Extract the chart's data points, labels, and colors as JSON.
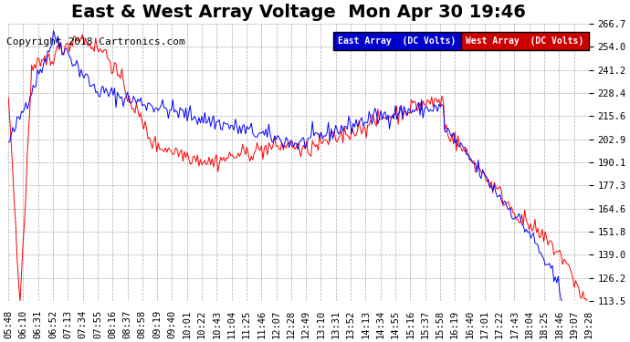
{
  "title": "East & West Array Voltage  Mon Apr 30 19:46",
  "copyright": "Copyright 2018 Cartronics.com",
  "legend_east": "East Array  (DC Volts)",
  "legend_west": "West Array  (DC Volts)",
  "east_color": "#0000ff",
  "west_color": "#ff0000",
  "legend_east_bg": "#0000cc",
  "legend_west_bg": "#cc0000",
  "background_color": "#ffffff",
  "plot_bg_color": "#ffffff",
  "grid_color": "#aaaaaa",
  "ylim": [
    113.5,
    266.7
  ],
  "yticks": [
    113.5,
    126.2,
    139.0,
    151.8,
    164.6,
    177.3,
    190.1,
    202.9,
    215.6,
    228.4,
    241.2,
    254.0,
    266.7
  ],
  "xtick_labels": [
    "05:48",
    "06:10",
    "06:31",
    "06:52",
    "07:13",
    "07:34",
    "07:55",
    "08:16",
    "08:37",
    "08:58",
    "09:19",
    "09:40",
    "10:01",
    "10:22",
    "10:43",
    "11:04",
    "11:25",
    "11:46",
    "12:07",
    "12:28",
    "12:49",
    "13:10",
    "13:31",
    "13:52",
    "14:13",
    "14:34",
    "14:55",
    "15:16",
    "15:37",
    "15:58",
    "16:19",
    "16:40",
    "17:01",
    "17:22",
    "17:43",
    "18:04",
    "18:25",
    "18:46",
    "19:07",
    "19:28"
  ],
  "title_fontsize": 14,
  "tick_fontsize": 7.5,
  "copyright_fontsize": 8
}
